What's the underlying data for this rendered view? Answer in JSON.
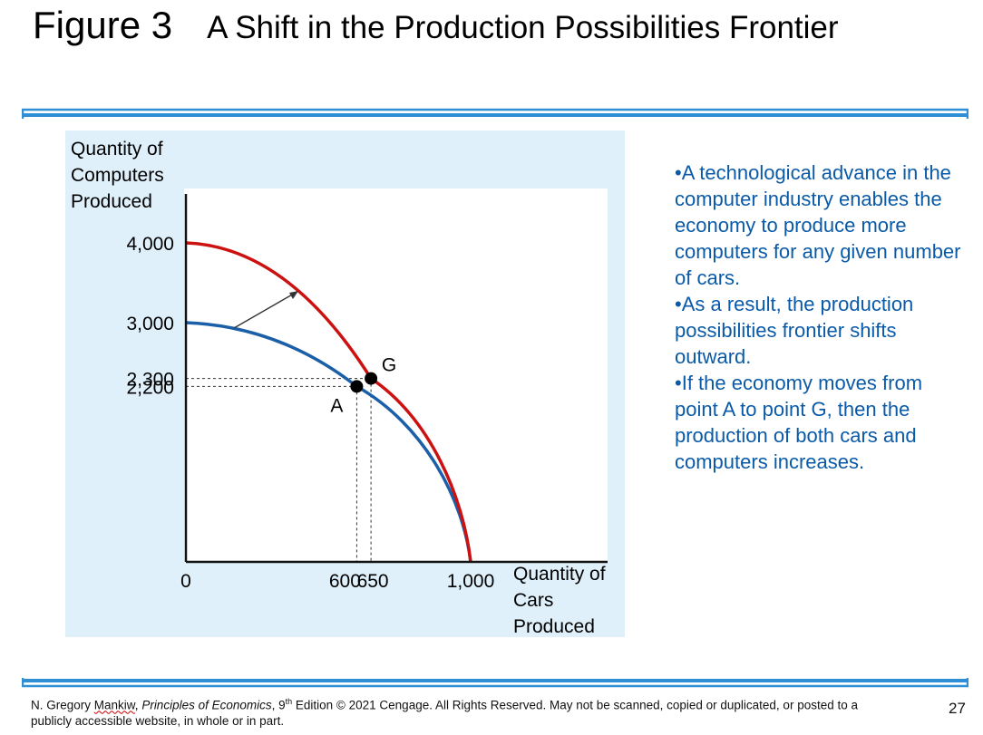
{
  "slide": {
    "title_prefix": "Figure 3",
    "title": "A Shift in the Production Possibilities Frontier",
    "page_number": "27"
  },
  "bullets": [
    "•A technological advance in the computer industry enables the economy to produce more computers for any given number of cars.",
    "•As a result, the production possibilities frontier shifts outward.",
    "•If the economy moves from point A to point G, then the production of both cars and computers increases."
  ],
  "footer": {
    "name_first": "N. Gregory ",
    "name_last": "Mankiw",
    "comma": ", ",
    "book": "Principles of Economics",
    "edition_pre": ", 9",
    "edition_sup": "th",
    "edition_post": " Edition © 2021 Cengage. All Rights Reserved. May not be scanned, copied or duplicated, or posted to a publicly accessible website, in whole or in part."
  },
  "colors": {
    "panel_bg": "#dff0fb",
    "rule": "#2f8fd6",
    "old_frontier": "#1a5fa8",
    "new_frontier": "#cc1111",
    "text_blue": "#0a5aa8"
  },
  "chart_data": {
    "type": "line",
    "ylabel": "Quantity of Computers Produced",
    "xlabel": "Quantity of Cars Produced",
    "x_ticks": [
      "0",
      "600",
      "650",
      "1,000"
    ],
    "y_ticks": [
      "4,000",
      "3,000",
      "2,300",
      "2,200"
    ],
    "series": [
      {
        "name": "",
        "color": "#1a5fa8",
        "x": [
          0,
          600,
          1000
        ],
        "y": [
          3000,
          2200,
          0
        ]
      },
      {
        "name": "",
        "color": "#cc1111",
        "x": [
          0,
          650,
          1000
        ],
        "y": [
          4000,
          2300,
          0
        ]
      }
    ],
    "points": [
      {
        "label": "A",
        "x": 600,
        "y": 2200
      },
      {
        "label": "G",
        "x": 650,
        "y": 2300
      }
    ],
    "shift_arrow": true
  }
}
